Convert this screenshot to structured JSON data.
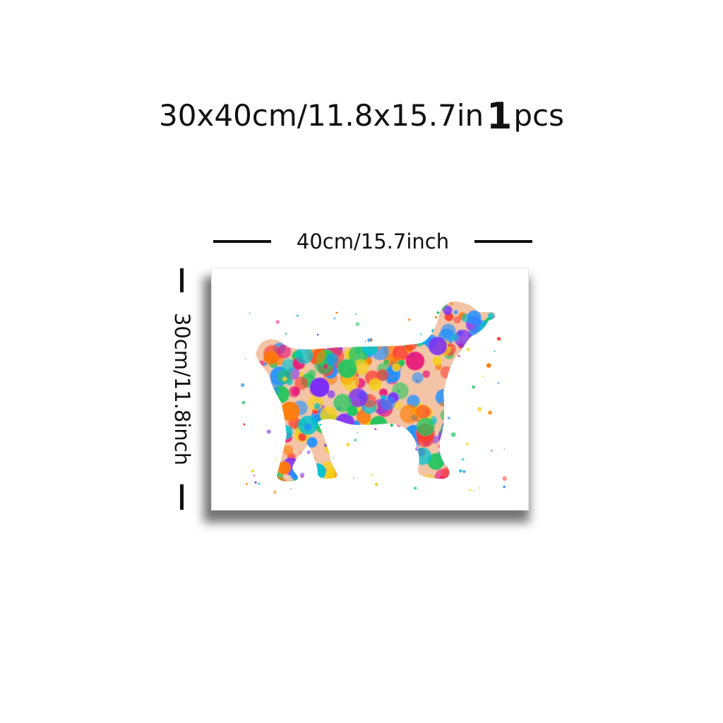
{
  "headline": {
    "size_text": "30x40cm/11.8x15.7in",
    "quantity_number": "1",
    "quantity_unit": "pcs"
  },
  "dimensions": {
    "width_label": "40cm/15.7inch",
    "height_label": "30cm/11.8inch"
  },
  "artwork": {
    "subject": "watercolor-splash-dog-silhouette",
    "palette": [
      "#e8157a",
      "#f7d117",
      "#1e90ff",
      "#ff7a00",
      "#7b2ff7",
      "#22c55e",
      "#ff3b30",
      "#00c2d1"
    ]
  }
}
